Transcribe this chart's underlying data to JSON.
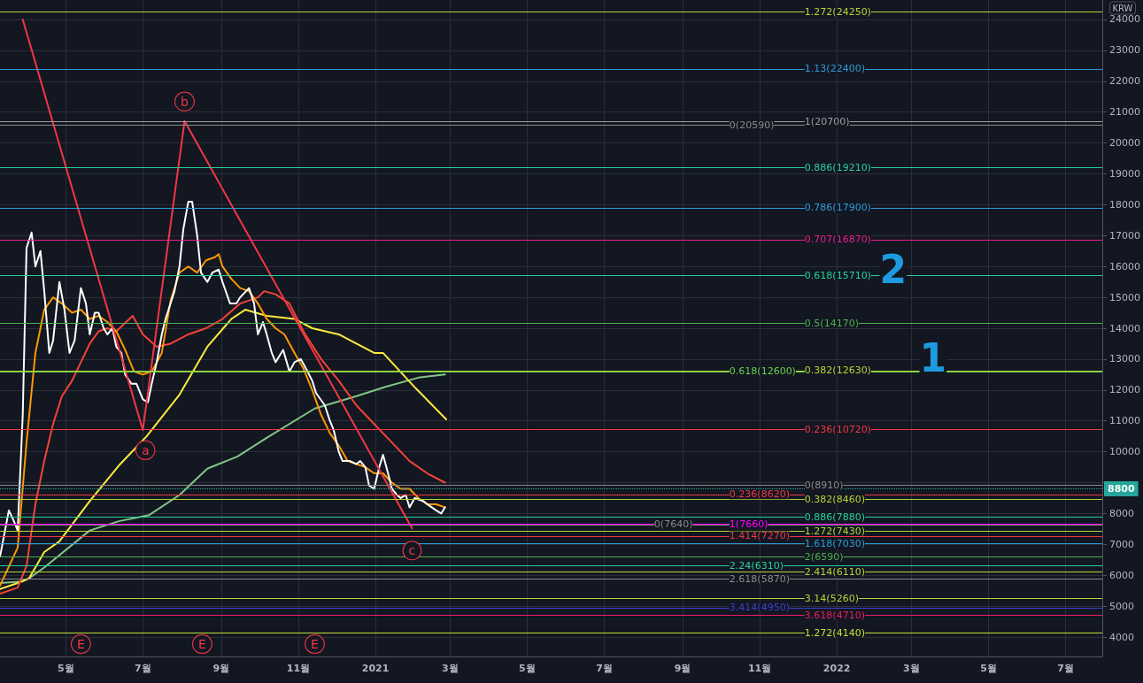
{
  "chart_data": {
    "type": "line",
    "ylabel": "KRW",
    "xlim": [
      "2020-03-10",
      "2022-07-30"
    ],
    "xticks": [
      {
        "value": "2020-05-01",
        "label": "5월"
      },
      {
        "value": "2020-07-01",
        "label": "7월"
      },
      {
        "value": "2020-09-01",
        "label": "9월"
      },
      {
        "value": "2020-11-01",
        "label": "11월"
      },
      {
        "value": "2021-01-01",
        "label": "2021"
      },
      {
        "value": "2021-03-01",
        "label": "3월"
      },
      {
        "value": "2021-05-01",
        "label": "5월"
      },
      {
        "value": "2021-07-01",
        "label": "7월"
      },
      {
        "value": "2021-09-01",
        "label": "9월"
      },
      {
        "value": "2021-11-01",
        "label": "11월"
      },
      {
        "value": "2022-01-01",
        "label": "2022"
      },
      {
        "value": "2022-03-01",
        "label": "3월"
      },
      {
        "value": "2022-05-01",
        "label": "5월"
      },
      {
        "value": "2022-07-01",
        "label": "7월"
      }
    ],
    "ylim": [
      3370,
      24630
    ],
    "yticks": [
      4000,
      5000,
      6000,
      7000,
      8000,
      {
        "value": 9000,
        "label": null
      },
      10000,
      11000,
      12000,
      13000,
      14000,
      15000,
      16000,
      17000,
      18000,
      19000,
      20000,
      21000,
      22000,
      23000,
      24000
    ],
    "grid": true,
    "marker": "none",
    "line_style": "solid",
    "series": [
      {
        "color": "#81c784",
        "x": [
          "2020-03-10",
          "2020-03-28",
          "2020-04-02",
          "2020-04-14",
          "2020-05-20",
          "2020-06-12",
          "2020-07-06",
          "2020-07-30",
          "2020-08-21",
          "2020-09-14",
          "2020-10-07",
          "2020-11-14",
          "2020-12-17",
          "2021-01-09",
          "2021-02-04",
          "2021-02-25"
        ],
        "values": [
          5750,
          5800,
          5900,
          6250,
          7450,
          7750,
          7950,
          8600,
          9450,
          9850,
          10450,
          11400,
          11800,
          12100,
          12400,
          12500
        ]
      },
      {
        "color": "#ffeb3b",
        "x": [
          "2020-03-10",
          "2020-03-24",
          "2020-04-02",
          "2020-04-14",
          "2020-04-26",
          "2020-05-20",
          "2020-06-12",
          "2020-07-04",
          "2020-07-30",
          "2020-08-21",
          "2020-09-09",
          "2020-09-20",
          "2020-10-07",
          "2020-10-29",
          "2020-11-12",
          "2020-12-03",
          "2020-12-17",
          "2020-12-31",
          "2021-01-07",
          "2021-02-02",
          "2021-02-26"
        ],
        "values": [
          5550,
          5750,
          5900,
          6750,
          7100,
          8400,
          9550,
          10500,
          11850,
          13400,
          14300,
          14600,
          14400,
          14300,
          14000,
          13800,
          13500,
          13200,
          13200,
          12050,
          11050
        ]
      },
      {
        "color": "#f44336",
        "x": [
          "2020-03-10",
          "2020-03-24",
          "2020-03-31",
          "2020-04-07",
          "2020-04-14",
          "2020-04-21",
          "2020-04-28",
          "2020-05-06",
          "2020-05-13",
          "2020-05-20",
          "2020-05-27",
          "2020-06-03",
          "2020-06-10",
          "2020-06-23",
          "2020-07-01",
          "2020-07-12",
          "2020-07-23",
          "2020-08-06",
          "2020-08-20",
          "2020-09-02",
          "2020-09-16",
          "2020-09-30",
          "2020-10-05",
          "2020-10-14",
          "2020-10-25",
          "2020-11-05",
          "2020-11-19",
          "2020-12-03",
          "2020-12-17",
          "2020-12-31",
          "2021-01-14",
          "2021-01-28",
          "2021-02-11",
          "2021-02-25"
        ],
        "values": [
          5400,
          5600,
          6300,
          8300,
          9700,
          10900,
          11800,
          12300,
          12900,
          13500,
          13900,
          14000,
          13900,
          14400,
          13800,
          13400,
          13500,
          13800,
          14000,
          14300,
          14800,
          15000,
          15200,
          15100,
          14800,
          13900,
          13000,
          12300,
          11500,
          10900,
          10300,
          9700,
          9300,
          9000
        ]
      },
      {
        "color": "#ff9800",
        "x": [
          "2020-03-10",
          "2020-03-24",
          "2020-03-31",
          "2020-04-07",
          "2020-04-14",
          "2020-04-21",
          "2020-04-28",
          "2020-05-06",
          "2020-05-13",
          "2020-05-20",
          "2020-05-27",
          "2020-06-03",
          "2020-06-10",
          "2020-06-17",
          "2020-06-24",
          "2020-07-01",
          "2020-07-08",
          "2020-07-16",
          "2020-07-23",
          "2020-07-30",
          "2020-08-06",
          "2020-08-13",
          "2020-08-20",
          "2020-08-27",
          "2020-08-30",
          "2020-09-02",
          "2020-09-09",
          "2020-09-16",
          "2020-09-23",
          "2020-09-30",
          "2020-10-07",
          "2020-10-14",
          "2020-10-21",
          "2020-10-29",
          "2020-11-05",
          "2020-11-12",
          "2020-11-19",
          "2020-11-26",
          "2020-12-03",
          "2020-12-10",
          "2020-12-17",
          "2020-12-24",
          "2020-12-31",
          "2021-01-07",
          "2021-01-14",
          "2021-01-21",
          "2021-01-28",
          "2021-02-04",
          "2021-02-11",
          "2021-02-18",
          "2021-02-25"
        ],
        "values": [
          5660,
          6900,
          10300,
          13200,
          14600,
          15000,
          14800,
          14500,
          14600,
          14300,
          14400,
          14200,
          13900,
          13300,
          12600,
          12500,
          12600,
          13200,
          14900,
          15800,
          16000,
          15800,
          16200,
          16300,
          16400,
          16000,
          15600,
          15300,
          15200,
          14800,
          14300,
          14000,
          13800,
          13200,
          12700,
          12000,
          11200,
          10600,
          10200,
          9700,
          9600,
          9500,
          9300,
          9300,
          9000,
          8800,
          8800,
          8500,
          8300,
          8300,
          8200
        ]
      },
      {
        "color": "#ffffff",
        "x": [
          "2020-03-10",
          "2020-03-17",
          "2020-03-21",
          "2020-03-24",
          "2020-03-28",
          "2020-03-31",
          "2020-04-04",
          "2020-04-07",
          "2020-04-11",
          "2020-04-14",
          "2020-04-18",
          "2020-04-21",
          "2020-04-26",
          "2020-04-30",
          "2020-05-04",
          "2020-05-08",
          "2020-05-13",
          "2020-05-17",
          "2020-05-20",
          "2020-05-24",
          "2020-05-27",
          "2020-05-31",
          "2020-06-03",
          "2020-06-07",
          "2020-06-10",
          "2020-06-14",
          "2020-06-17",
          "2020-06-22",
          "2020-06-26",
          "2020-07-01",
          "2020-07-05",
          "2020-07-08",
          "2020-07-12",
          "2020-07-16",
          "2020-07-19",
          "2020-07-26",
          "2020-07-30",
          "2020-08-02",
          "2020-08-06",
          "2020-08-09",
          "2020-08-13",
          "2020-08-16",
          "2020-08-21",
          "2020-08-25",
          "2020-08-30",
          "2020-09-02",
          "2020-09-08",
          "2020-09-13",
          "2020-09-16",
          "2020-09-23",
          "2020-09-27",
          "2020-09-30",
          "2020-10-04",
          "2020-10-07",
          "2020-10-11",
          "2020-10-14",
          "2020-10-20",
          "2020-10-25",
          "2020-10-29",
          "2020-11-03",
          "2020-11-07",
          "2020-11-12",
          "2020-11-15",
          "2020-11-22",
          "2020-11-26",
          "2020-11-29",
          "2020-12-03",
          "2020-12-06",
          "2020-12-12",
          "2020-12-17",
          "2020-12-20",
          "2020-12-24",
          "2020-12-27",
          "2020-12-31",
          "2021-01-04",
          "2021-01-07",
          "2021-01-11",
          "2021-01-14",
          "2021-01-18",
          "2021-01-21",
          "2021-01-25",
          "2021-01-28",
          "2021-02-01",
          "2021-02-08",
          "2021-02-11",
          "2021-02-18",
          "2021-02-22",
          "2021-02-25"
        ],
        "values": [
          6600,
          8100,
          7750,
          7450,
          11200,
          16600,
          17100,
          16000,
          16500,
          15200,
          13200,
          13600,
          15500,
          14600,
          13200,
          13600,
          15300,
          14800,
          13800,
          14500,
          14500,
          14000,
          13800,
          14000,
          13400,
          13200,
          12500,
          12200,
          12200,
          11700,
          11600,
          12200,
          12900,
          13800,
          14300,
          15200,
          16000,
          17200,
          18100,
          18100,
          17000,
          15800,
          15500,
          15800,
          15900,
          15500,
          14800,
          14800,
          15000,
          15300,
          14800,
          13800,
          14200,
          13800,
          13200,
          12900,
          13300,
          12600,
          12900,
          13000,
          12700,
          12300,
          11900,
          11500,
          11000,
          10700,
          10000,
          9700,
          9700,
          9600,
          9700,
          9500,
          8900,
          8800,
          9500,
          9900,
          9300,
          8800,
          8600,
          8500,
          8600,
          8200,
          8500,
          8400,
          8300,
          8100,
          8000,
          8200
        ]
      },
      {
        "color": "#f23645",
        "x": [
          "2020-03-28",
          "2020-07-01",
          "2020-08-03",
          "2021-01-30"
        ],
        "values": [
          24000,
          10700,
          20710,
          7520
        ]
      }
    ],
    "ref_lines": [
      {
        "axis": "y",
        "value": 24250,
        "label": "1.272(24250)",
        "color": "#b5d334"
      },
      {
        "axis": "y",
        "value": 22400,
        "label": "1.13(22400)",
        "color": "#2e9bd6"
      },
      {
        "axis": "y",
        "value": 20700,
        "label": "1(20700)",
        "color": "#9e9e9e"
      },
      {
        "axis": "y",
        "value": 20590,
        "label": "0(20590)",
        "color": "#8a8a8a"
      },
      {
        "axis": "y",
        "value": 19210,
        "label": "0.886(19210)",
        "color": "#26d09c"
      },
      {
        "axis": "y",
        "value": 17900,
        "label": "0.786(17900)",
        "color": "#2e9bd6"
      },
      {
        "axis": "y",
        "value": 16870,
        "label": "0.707(16870)",
        "color": "#e91e8c"
      },
      {
        "axis": "y",
        "value": 15710,
        "label": "0.618(15710)",
        "color": "#26d09c"
      },
      {
        "axis": "y",
        "value": 14170,
        "label": "0.5(14170)",
        "color": "#4caf50"
      },
      {
        "axis": "y",
        "value": 12630,
        "label": "0.382(12630)",
        "color": "#b5d334"
      },
      {
        "axis": "y",
        "value": 12600,
        "label": "0.618(12600)",
        "color": "#66d04a"
      },
      {
        "axis": "y",
        "value": 10720,
        "label": "0.236(10720)",
        "color": "#f23645"
      },
      {
        "axis": "y",
        "value": 8910,
        "label": "0(8910)",
        "color": "#8a8a8a"
      },
      {
        "axis": "y",
        "value": 8620,
        "label": "0.236(8620)",
        "color": "#f23645"
      },
      {
        "axis": "y",
        "value": 8460,
        "label": "0.382(8460)",
        "color": "#b5d334"
      },
      {
        "axis": "y",
        "value": 7880,
        "label": "0.886(7880)",
        "color": "#26d09c"
      },
      {
        "axis": "y",
        "value": 7660,
        "label": "1(7660)",
        "color": "#ff00ff"
      },
      {
        "axis": "y",
        "value": 7640,
        "label": "0(7640)",
        "color": "#8a8a8a"
      },
      {
        "axis": "y",
        "value": 7430,
        "label": "1.272(7430)",
        "color": "#b5d334"
      },
      {
        "axis": "y",
        "value": 7270,
        "label": "1.414(7270)",
        "color": "#f23645"
      },
      {
        "axis": "y",
        "value": 7030,
        "label": "1.618(7030)",
        "color": "#2e9bd6"
      },
      {
        "axis": "y",
        "value": 6590,
        "label": "2(6590)",
        "color": "#4caf50"
      },
      {
        "axis": "y",
        "value": 6310,
        "label": "2.24(6310)",
        "color": "#26d09c"
      },
      {
        "axis": "y",
        "value": 6110,
        "label": "2.414(6110)",
        "color": "#b5d334"
      },
      {
        "axis": "y",
        "value": 5870,
        "label": "2.618(5870)",
        "color": "#8a8a8a"
      },
      {
        "axis": "y",
        "value": 5260,
        "label": "3.14(5260)",
        "color": "#b5d334"
      },
      {
        "axis": "y",
        "value": 4950,
        "label": "3.414(4950)",
        "color": "#3f3fd0"
      },
      {
        "axis": "y",
        "value": 4710,
        "label": "3.618(4710)",
        "color": "#e91e63"
      },
      {
        "axis": "y",
        "value": 4140,
        "label": "1.272(4140)",
        "color": "#c0e030"
      },
      {
        "axis": "y",
        "value": 8800,
        "label": "8800",
        "color": "#26a69a",
        "line_style": "dotted"
      }
    ],
    "annotations": [
      {
        "text": "a",
        "x": "2020-07-03",
        "y": 10050
      },
      {
        "text": "b",
        "x": "2020-08-03",
        "y": 21340
      },
      {
        "text": "c",
        "x": "2021-01-30",
        "y": 6800
      },
      {
        "text": "E",
        "x": "2020-05-13",
        "y": 3770
      },
      {
        "text": "E",
        "x": "2020-08-17",
        "y": 3770
      },
      {
        "text": "E",
        "x": "2020-11-14",
        "y": 3770
      },
      "2",
      "1"
    ]
  }
}
